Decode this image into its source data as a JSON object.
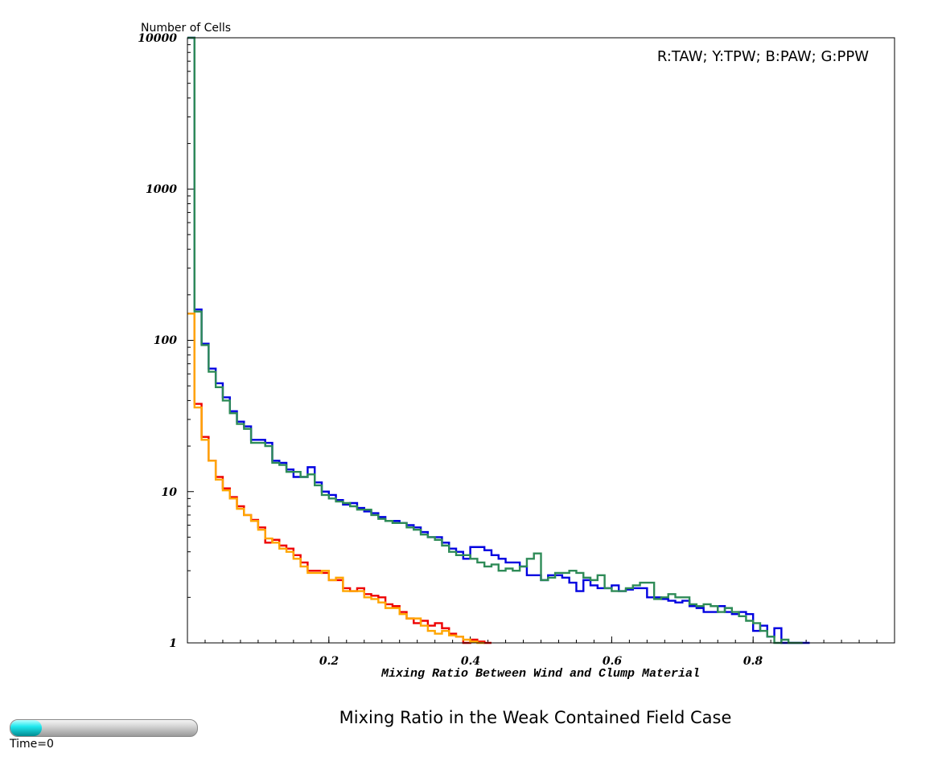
{
  "chart_data": {
    "type": "line",
    "title": "Mixing Ratio in the Weak Contained Field Case",
    "xlabel": "Mixing Ratio Between Wind and Clump Material",
    "ylabel": "Number of Cells",
    "xlim": [
      0,
      1.0
    ],
    "ylim": [
      1,
      10000
    ],
    "yscale": "log",
    "x_ticks": [
      0.2,
      0.4,
      0.6,
      0.8
    ],
    "x_tick_labels": [
      "0.2",
      "0.4",
      "0.6",
      "0.8"
    ],
    "y_ticks": [
      1,
      10,
      100,
      1000,
      10000
    ],
    "y_tick_labels": [
      "1",
      "10",
      "100",
      "1000",
      "10000"
    ],
    "legend_text": "R:TAW; Y:TPW; B:PAW; G:PPW",
    "legend_placement": "top-right",
    "grid": false,
    "bin_width": 0.01,
    "series": [
      {
        "key": "R",
        "name": "TAW",
        "color": "#ee0000",
        "values": [
          150,
          38,
          23,
          16,
          12.5,
          10.5,
          9.2,
          8.0,
          7.0,
          6.5,
          5.8,
          4.6,
          4.8,
          4.4,
          4.2,
          3.8,
          3.4,
          3.0,
          3.0,
          2.9,
          2.6,
          2.6,
          2.3,
          2.2,
          2.3,
          2.1,
          2.05,
          2.0,
          1.8,
          1.75,
          1.6,
          1.45,
          1.35,
          1.4,
          1.3,
          1.35,
          1.25,
          1.15,
          1.1,
          1.0,
          1.05,
          1.02,
          1.0
        ]
      },
      {
        "key": "Y",
        "name": "TPW",
        "color": "#ffa500",
        "values": [
          150,
          36,
          22,
          16,
          12,
          10.2,
          9.0,
          7.7,
          7.0,
          6.4,
          5.6,
          4.9,
          4.6,
          4.2,
          4.0,
          3.6,
          3.2,
          2.9,
          2.9,
          3.0,
          2.6,
          2.7,
          2.2,
          2.2,
          2.2,
          2.0,
          1.95,
          1.85,
          1.7,
          1.7,
          1.55,
          1.45,
          1.45,
          1.3,
          1.2,
          1.15,
          1.2,
          1.12,
          1.1,
          1.05,
          1.02,
          1.0
        ]
      },
      {
        "key": "B",
        "name": "PAW",
        "color": "#0000e0",
        "values": [
          10000,
          160,
          95,
          65,
          52,
          42,
          34,
          29,
          27,
          22,
          22,
          21,
          16,
          15.5,
          14,
          12.5,
          12.5,
          14.5,
          11.5,
          10.0,
          9.5,
          8.8,
          8.2,
          8.4,
          7.8,
          7.4,
          7.2,
          6.8,
          6.4,
          6.4,
          6.2,
          6.0,
          5.8,
          5.4,
          5.0,
          5.0,
          4.6,
          4.2,
          4.0,
          3.6,
          4.3,
          4.3,
          4.1,
          3.8,
          3.6,
          3.4,
          3.4,
          3.2,
          2.8,
          2.8,
          2.6,
          2.8,
          2.8,
          2.7,
          2.5,
          2.2,
          2.6,
          2.4,
          2.3,
          2.3,
          2.4,
          2.2,
          2.25,
          2.3,
          2.3,
          2.0,
          2.0,
          1.95,
          1.9,
          1.85,
          1.9,
          1.75,
          1.7,
          1.6,
          1.6,
          1.75,
          1.6,
          1.55,
          1.6,
          1.55,
          1.2,
          1.3,
          1.1,
          1.25,
          1.0,
          1.0,
          1.0,
          1.0
        ]
      },
      {
        "key": "G",
        "name": "PPW",
        "color": "#2e8b57",
        "values": [
          10000,
          155,
          93,
          62,
          49,
          40,
          33,
          28,
          26,
          21,
          21,
          20,
          15.5,
          15,
          13.5,
          13.5,
          12.5,
          13,
          11,
          9.5,
          9.0,
          8.6,
          8.4,
          8.0,
          7.6,
          7.6,
          7.0,
          6.6,
          6.4,
          6.2,
          6.2,
          5.8,
          5.6,
          5.2,
          5.0,
          4.8,
          4.4,
          4.0,
          3.8,
          3.8,
          3.6,
          3.4,
          3.2,
          3.3,
          3.0,
          3.1,
          3.0,
          3.2,
          3.6,
          3.9,
          2.6,
          2.7,
          2.9,
          2.9,
          3.0,
          2.9,
          2.7,
          2.6,
          2.8,
          2.3,
          2.2,
          2.2,
          2.3,
          2.4,
          2.5,
          2.5,
          1.95,
          2.0,
          2.1,
          2.0,
          2.0,
          1.8,
          1.75,
          1.8,
          1.75,
          1.6,
          1.7,
          1.6,
          1.5,
          1.4,
          1.35,
          1.2,
          1.1,
          1.0,
          1.05,
          1.0,
          1.0
        ]
      }
    ]
  },
  "time_slider": {
    "label": "Time=0",
    "fill_fraction": 0.17
  }
}
